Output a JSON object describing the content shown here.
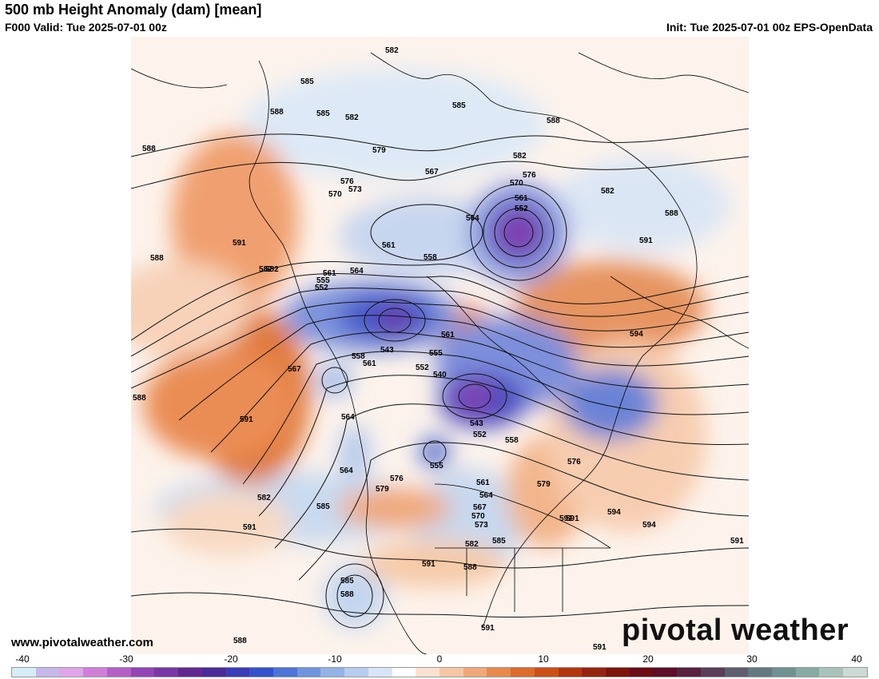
{
  "header": {
    "title": "500 mb Height Anomaly (dam) [mean]",
    "valid": "F000 Valid: Tue 2025-07-01 00z",
    "init": "Init: Tue 2025-07-01 00z EPS-OpenData"
  },
  "footer": {
    "website": "www.pivotalweather.com",
    "logo_text": "pivotal weather"
  },
  "colorbar": {
    "ticks": [
      "-40",
      "-30",
      "-20",
      "-10",
      "0",
      "10",
      "20",
      "30",
      "40"
    ],
    "colors": [
      "#d6ecf7",
      "#c6b9ea",
      "#e0a4e8",
      "#d07fd8",
      "#b35fc6",
      "#9344b5",
      "#7a36a6",
      "#60288f",
      "#4c2a98",
      "#3a3cb8",
      "#3552cc",
      "#4d74d6",
      "#6f94dd",
      "#93b2e6",
      "#b7cdef",
      "#d8e5f6",
      "#ffffff",
      "#fbe2cf",
      "#f6c7a4",
      "#f0a978",
      "#e88a4d",
      "#dd6b2b",
      "#cc4f18",
      "#b23610",
      "#96240c",
      "#7d150b",
      "#6a0d14",
      "#5c0e28",
      "#56203f",
      "#5a3e5a",
      "#5f5d70",
      "#627a80",
      "#6f9190",
      "#88aaa4",
      "#a9c3bb",
      "#cbdad4"
    ]
  },
  "map": {
    "contour_labels": [
      {
        "t": "582"
      },
      {
        "t": "585"
      },
      {
        "t": "582"
      },
      {
        "t": "588"
      },
      {
        "t": "585"
      },
      {
        "t": "588"
      },
      {
        "t": "579"
      },
      {
        "t": "588"
      },
      {
        "t": "585"
      },
      {
        "t": "582"
      },
      {
        "t": "567"
      },
      {
        "t": "576"
      },
      {
        "t": "570"
      },
      {
        "t": "573"
      },
      {
        "t": "570"
      },
      {
        "t": "561"
      },
      {
        "t": "552"
      },
      {
        "t": "564"
      },
      {
        "t": "582"
      },
      {
        "t": "588"
      },
      {
        "t": "591"
      },
      {
        "t": "561"
      },
      {
        "t": "558"
      },
      {
        "t": "588"
      },
      {
        "t": "582"
      },
      {
        "t": "561"
      },
      {
        "t": "564"
      },
      {
        "t": "555"
      },
      {
        "t": "552"
      },
      {
        "t": "591"
      },
      {
        "t": "543"
      },
      {
        "t": "558"
      },
      {
        "t": "561"
      },
      {
        "t": "561"
      },
      {
        "t": "555"
      },
      {
        "t": "552"
      },
      {
        "t": "567"
      },
      {
        "t": "540"
      },
      {
        "t": "543"
      },
      {
        "t": "552"
      },
      {
        "t": "558"
      },
      {
        "t": "564"
      },
      {
        "t": "591"
      },
      {
        "t": "564"
      },
      {
        "t": "555"
      },
      {
        "t": "588"
      },
      {
        "t": "576"
      },
      {
        "t": "579"
      },
      {
        "t": "561"
      },
      {
        "t": "564"
      },
      {
        "t": "567"
      },
      {
        "t": "570"
      },
      {
        "t": "573"
      },
      {
        "t": "576"
      },
      {
        "t": "579"
      },
      {
        "t": "582"
      },
      {
        "t": "585"
      },
      {
        "t": "594"
      },
      {
        "t": "594"
      },
      {
        "t": "591"
      },
      {
        "t": "591"
      },
      {
        "t": "591"
      },
      {
        "t": "585"
      },
      {
        "t": "588"
      },
      {
        "t": "591"
      },
      {
        "t": "588"
      },
      {
        "t": "582"
      },
      {
        "t": "585"
      },
      {
        "t": "591"
      },
      {
        "t": "588"
      },
      {
        "t": "591"
      },
      {
        "t": "591"
      },
      {
        "t": "594"
      },
      {
        "t": "582"
      },
      {
        "t": "576"
      }
    ]
  }
}
